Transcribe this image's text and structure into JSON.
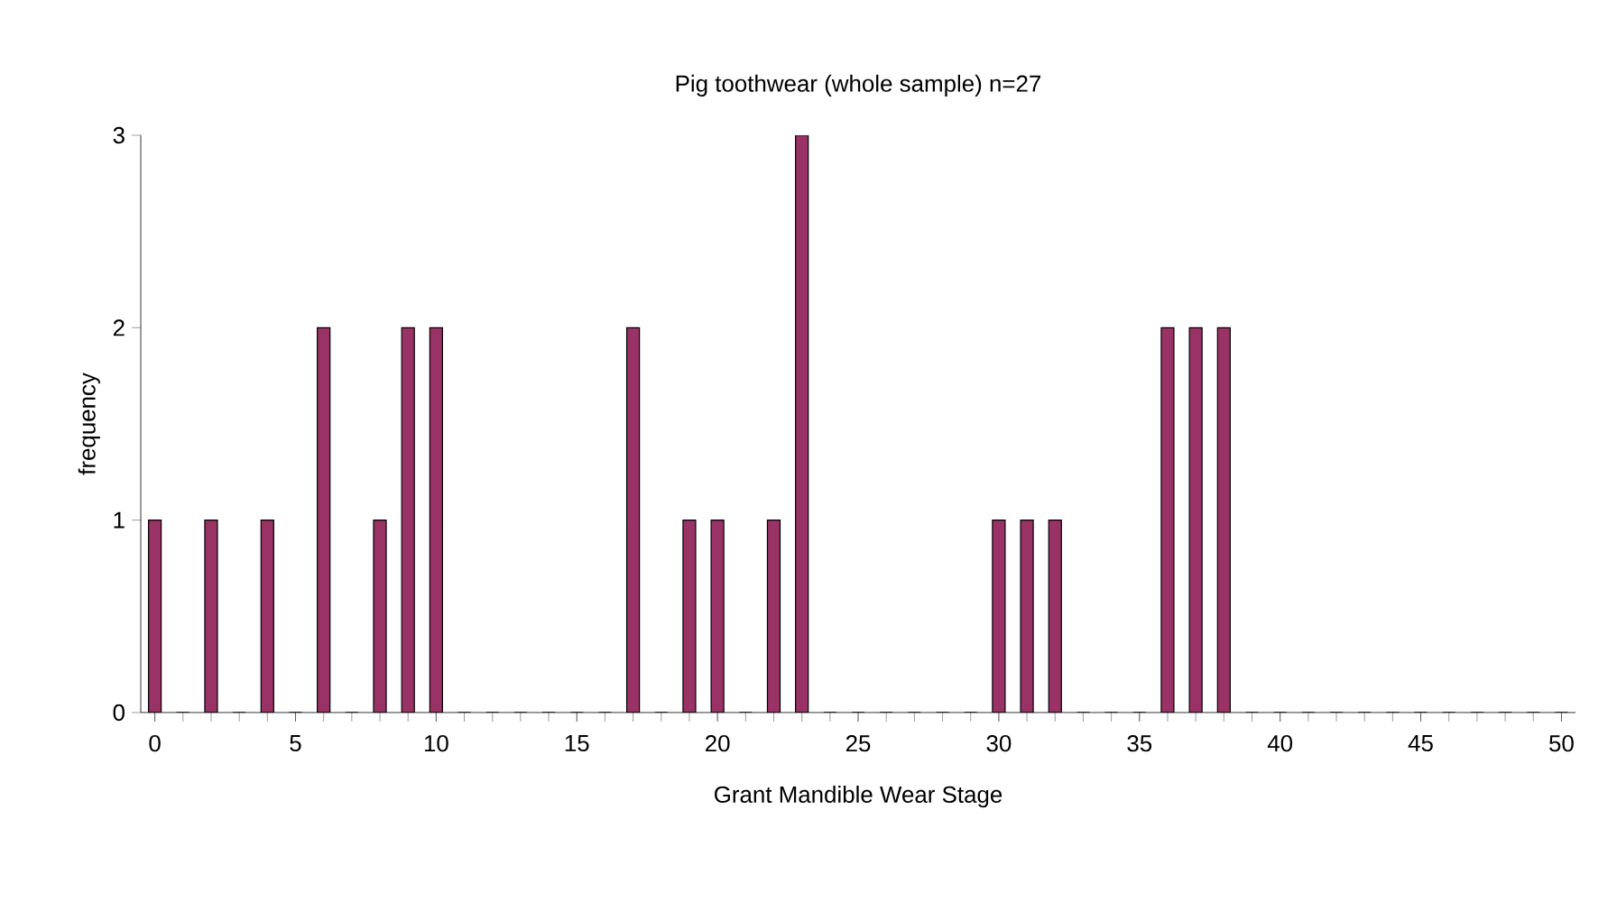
{
  "chart_data": {
    "type": "bar",
    "title": "Pig toothwear (whole sample) n=27",
    "xlabel": "Grant Mandible Wear Stage",
    "ylabel": "frequency",
    "categories": [
      "0",
      null,
      null,
      null,
      null,
      "5",
      null,
      null,
      null,
      null,
      "10",
      null,
      null,
      null,
      null,
      "15",
      null,
      null,
      null,
      null,
      "20",
      null,
      null,
      null,
      null,
      "25",
      null,
      null,
      null,
      null,
      "30",
      null,
      null,
      null,
      null,
      "35",
      null,
      null,
      null,
      null,
      "40",
      null,
      null,
      null,
      null,
      "45",
      null,
      null,
      null,
      null,
      "50"
    ],
    "values": [
      1,
      0,
      1,
      0,
      1,
      0,
      2,
      0,
      1,
      2,
      2,
      0,
      0,
      0,
      0,
      0,
      0,
      2,
      0,
      1,
      1,
      0,
      1,
      3,
      0,
      0,
      0,
      0,
      0,
      0,
      1,
      1,
      1,
      0,
      0,
      0,
      2,
      2,
      2,
      0,
      0,
      0,
      0,
      0,
      0,
      0,
      0,
      0,
      0,
      0,
      0
    ],
    "color": "#993366",
    "ylim": [
      0,
      3
    ],
    "yticks": [
      0,
      1,
      2,
      3
    ],
    "grid": false
  }
}
